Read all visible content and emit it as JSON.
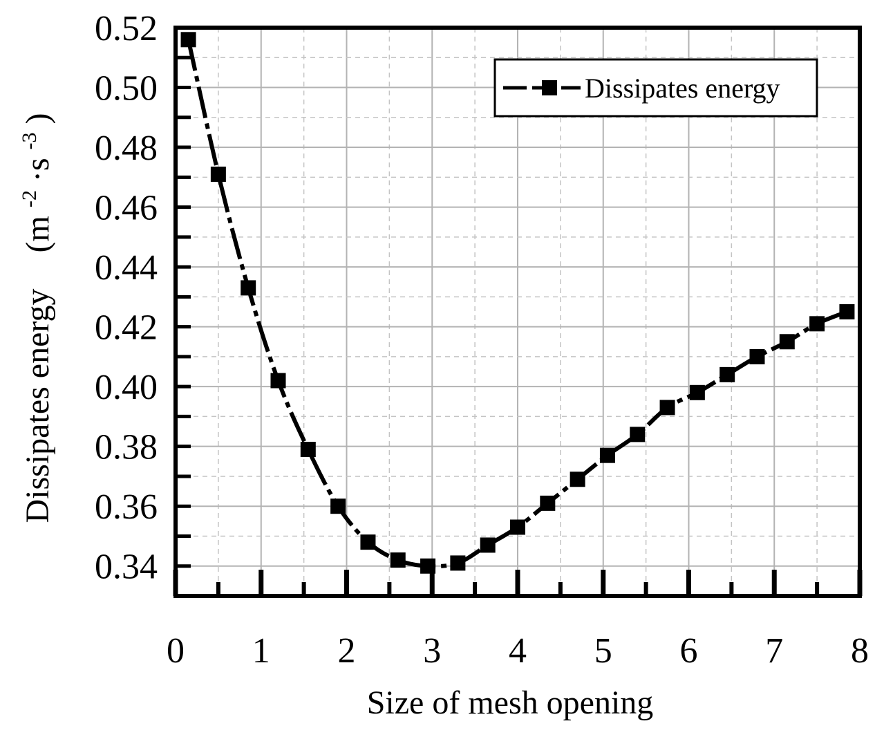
{
  "chart_data": {
    "type": "line",
    "title": "",
    "xlabel": "Size of mesh opening",
    "ylabel": "Dissipates energy",
    "ylabel_unit": {
      "open": "(m",
      "sup1": "-2",
      "mid": "·s",
      "sup2": "-3",
      "close": ")"
    },
    "xlim": [
      0,
      8
    ],
    "ylim": [
      0.33,
      0.52
    ],
    "x_ticks": [
      0,
      1,
      2,
      3,
      4,
      5,
      6,
      7,
      8
    ],
    "x_tick_labels": [
      "0",
      "1",
      "2",
      "3",
      "4",
      "5",
      "6",
      "7",
      "8"
    ],
    "y_ticks": [
      0.34,
      0.36,
      0.38,
      0.4,
      0.42,
      0.44,
      0.46,
      0.48,
      0.5,
      0.52
    ],
    "y_tick_labels": [
      "0.34",
      "0.36",
      "0.38",
      "0.40",
      "0.42",
      "0.44",
      "0.46",
      "0.48",
      "0.50",
      "0.52"
    ],
    "grid": true,
    "legend_position": "top-right",
    "series": [
      {
        "name": "Dissipates energy",
        "color": "#000000",
        "marker": "square",
        "line_style": "dash-dot",
        "x": [
          0.15,
          0.5,
          0.85,
          1.2,
          1.55,
          1.9,
          2.25,
          2.6,
          2.95,
          3.3,
          3.65,
          4.0,
          4.35,
          4.7,
          5.05,
          5.4,
          5.75,
          6.1,
          6.45,
          6.8,
          7.15,
          7.5,
          7.85
        ],
        "values": [
          0.516,
          0.471,
          0.433,
          0.402,
          0.379,
          0.36,
          0.348,
          0.342,
          0.34,
          0.341,
          0.347,
          0.353,
          0.361,
          0.369,
          0.377,
          0.384,
          0.393,
          0.398,
          0.404,
          0.41,
          0.415,
          0.421,
          0.425
        ]
      }
    ]
  }
}
